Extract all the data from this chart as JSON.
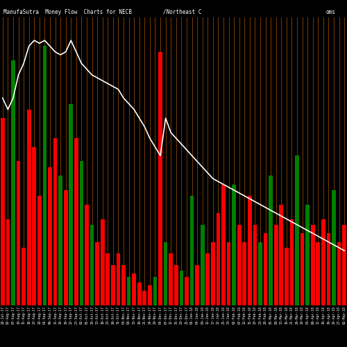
{
  "title_left": "ManufaSutra  Money Flow  Charts for NECB",
  "title_mid": "/Northeast C",
  "title_right": "oms",
  "background_color": "#000000",
  "bar_colors": [
    "red",
    "red",
    "green",
    "red",
    "red",
    "red",
    "red",
    "red",
    "green",
    "red",
    "red",
    "green",
    "red",
    "green",
    "red",
    "green",
    "red",
    "green",
    "red",
    "red",
    "red",
    "red",
    "red",
    "red",
    "green",
    "red",
    "red",
    "red",
    "red",
    "green",
    "red",
    "green",
    "red",
    "red",
    "green",
    "red",
    "green",
    "red",
    "green",
    "red",
    "red",
    "red",
    "red",
    "red",
    "green",
    "red",
    "red",
    "red",
    "red",
    "green",
    "red",
    "green",
    "red",
    "red",
    "red",
    "red",
    "green",
    "red",
    "green",
    "red",
    "red",
    "red",
    "red",
    "green",
    "red",
    "red"
  ],
  "bar_heights": [
    65,
    30,
    85,
    50,
    20,
    68,
    55,
    38,
    90,
    48,
    58,
    45,
    40,
    70,
    58,
    50,
    35,
    28,
    22,
    30,
    18,
    14,
    18,
    14,
    10,
    11,
    8,
    5,
    7,
    10,
    88,
    22,
    18,
    14,
    12,
    10,
    38,
    14,
    28,
    18,
    22,
    32,
    42,
    22,
    42,
    28,
    22,
    38,
    28,
    22,
    25,
    45,
    28,
    35,
    20,
    30,
    52,
    25,
    35,
    28,
    22,
    30,
    25,
    40,
    22,
    28
  ],
  "line_values": [
    72,
    68,
    72,
    80,
    84,
    90,
    92,
    91,
    92,
    90,
    88,
    87,
    88,
    92,
    88,
    84,
    82,
    80,
    79,
    78,
    77,
    76,
    75,
    72,
    70,
    68,
    65,
    62,
    58,
    55,
    52,
    65,
    60,
    58,
    56,
    54,
    52,
    50,
    48,
    46,
    44,
    43,
    42,
    41,
    40,
    39,
    38,
    37,
    36,
    35,
    34,
    33,
    32,
    31,
    30,
    29,
    28,
    27,
    26,
    25,
    24,
    23,
    22,
    21,
    20,
    19
  ],
  "grid_color": "#7B3A00",
  "line_color": "#ffffff",
  "bar_width": 0.75,
  "figsize": [
    5.0,
    5.0
  ],
  "dpi": 100
}
